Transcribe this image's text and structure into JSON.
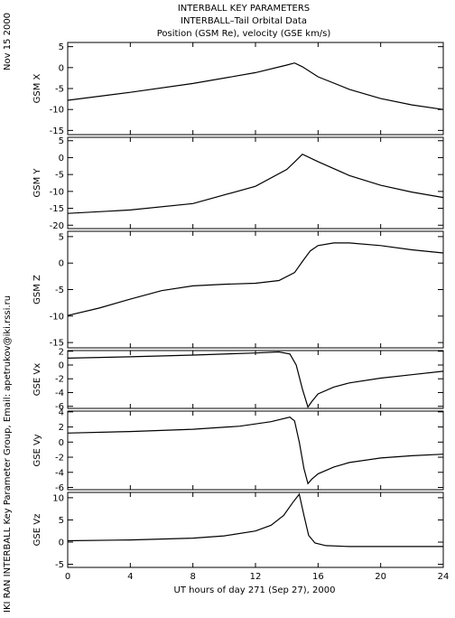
{
  "header": {
    "title_line1": "INTERBALL KEY PARAMETERS",
    "title_line2": "INTERBALL–Tail Orbital Data",
    "title_line3": "Position (GSM Re), velocity (GSE km/s)",
    "date": "Nov 15 2000",
    "credit": "IKI RAN INTERBALL Key Parameter Group, Email: apetrukov@iki.rssi.ru"
  },
  "chart_data": {
    "type": "line",
    "xlabel": "UT hours of day 271 (Sep 27), 2000",
    "xlim": [
      0,
      24
    ],
    "xticks": [
      0,
      4,
      8,
      12,
      16,
      20,
      24
    ],
    "panels": [
      {
        "ylabel": "GSM X",
        "ylim": [
          -16,
          6
        ],
        "yticks": [
          5,
          0,
          -5,
          -10,
          -15
        ],
        "x": [
          0,
          4,
          8,
          12,
          14,
          14.5,
          15,
          16,
          18,
          20,
          22,
          24
        ],
        "y": [
          -7.8,
          -5.9,
          -3.8,
          -1.2,
          0.6,
          1.1,
          0.2,
          -2.2,
          -5.2,
          -7.4,
          -8.9,
          -10.0
        ]
      },
      {
        "ylabel": "GSM Y",
        "ylim": [
          -21,
          6
        ],
        "yticks": [
          5,
          0,
          -5,
          -10,
          -15,
          -20
        ],
        "x": [
          0,
          4,
          8,
          12,
          14,
          14.5,
          15,
          16,
          18,
          20,
          22,
          24
        ],
        "y": [
          -16.5,
          -15.5,
          -13.6,
          -8.5,
          -3.5,
          -1.3,
          1.0,
          -1.2,
          -5.3,
          -8.2,
          -10.2,
          -11.8
        ]
      },
      {
        "ylabel": "GSM Z",
        "ylim": [
          -16,
          6
        ],
        "yticks": [
          5,
          0,
          -5,
          -10,
          -15
        ],
        "x": [
          0,
          2,
          4,
          6,
          8,
          10,
          12,
          13.5,
          14.5,
          15,
          15.5,
          16,
          17,
          18,
          20,
          22,
          24
        ],
        "y": [
          -9.9,
          -8.5,
          -6.8,
          -5.2,
          -4.3,
          -4.0,
          -3.8,
          -3.3,
          -1.8,
          0.3,
          2.3,
          3.3,
          3.8,
          3.8,
          3.3,
          2.5,
          1.9
        ]
      },
      {
        "ylabel": "GSE Vx",
        "ylim": [
          -6.3,
          2.1
        ],
        "yticks": [
          2,
          0,
          -2,
          -4,
          -6
        ],
        "x": [
          0,
          4,
          8,
          12,
          13.5,
          14.2,
          14.6,
          15.0,
          15.35,
          15.6,
          16,
          17,
          18,
          20,
          22,
          24
        ],
        "y": [
          1.0,
          1.2,
          1.45,
          1.75,
          1.9,
          1.6,
          0.0,
          -3.5,
          -6.1,
          -5.3,
          -4.2,
          -3.2,
          -2.6,
          -1.9,
          -1.4,
          -0.9
        ]
      },
      {
        "ylabel": "GSE Vy",
        "ylim": [
          -6.3,
          4.1
        ],
        "yticks": [
          4,
          2,
          0,
          -2,
          -4,
          -6
        ],
        "x": [
          0,
          4,
          8,
          11,
          13,
          14.2,
          14.5,
          14.8,
          15.1,
          15.35,
          15.6,
          16,
          17,
          18,
          20,
          22,
          24
        ],
        "y": [
          1.2,
          1.4,
          1.7,
          2.1,
          2.7,
          3.3,
          2.8,
          0.0,
          -3.5,
          -5.5,
          -4.9,
          -4.2,
          -3.3,
          -2.7,
          -2.1,
          -1.8,
          -1.6
        ]
      },
      {
        "ylabel": "GSE Vz",
        "ylim": [
          -5.7,
          11.2
        ],
        "yticks": [
          10,
          5,
          0,
          -5
        ],
        "x": [
          0,
          4,
          8,
          10,
          12,
          13,
          13.8,
          14.4,
          14.8,
          15.1,
          15.4,
          15.8,
          16.5,
          18,
          20,
          22,
          24
        ],
        "y": [
          0.3,
          0.5,
          0.9,
          1.4,
          2.5,
          3.8,
          6.0,
          9.0,
          10.8,
          6.0,
          1.5,
          -0.2,
          -0.8,
          -1.0,
          -1.0,
          -1.0,
          -1.0
        ]
      }
    ]
  }
}
